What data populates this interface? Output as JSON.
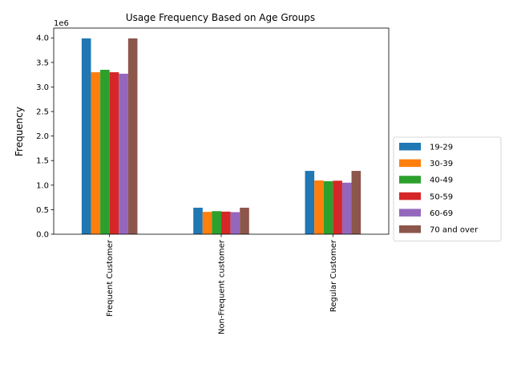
{
  "chart_data": {
    "type": "bar",
    "title": "Usage Frequency Based on Age Groups",
    "xlabel": "",
    "ylabel": "Frequency",
    "y_scale_note": "1e6",
    "ylim": [
      0,
      4200000
    ],
    "yticks": [
      0,
      500000,
      1000000,
      1500000,
      2000000,
      2500000,
      3000000,
      3500000,
      4000000
    ],
    "ytick_labels": [
      "0.0",
      "0.5",
      "1.0",
      "1.5",
      "2.0",
      "2.5",
      "3.0",
      "3.5",
      "4.0"
    ],
    "categories": [
      "Frequent Customer",
      "Non-Frequent customer",
      "Regular Customer"
    ],
    "legend_position": "center-right outside",
    "grid": false,
    "series": [
      {
        "name": "19-29",
        "color": "#1f77b4",
        "values": [
          3990000,
          540000,
          1290000
        ]
      },
      {
        "name": "30-39",
        "color": "#ff7f0e",
        "values": [
          3300000,
          455000,
          1095000
        ]
      },
      {
        "name": "40-49",
        "color": "#2ca02c",
        "values": [
          3350000,
          470000,
          1080000
        ]
      },
      {
        "name": "50-59",
        "color": "#d62728",
        "values": [
          3300000,
          460000,
          1090000
        ]
      },
      {
        "name": "60-69",
        "color": "#9467bd",
        "values": [
          3270000,
          450000,
          1050000
        ]
      },
      {
        "name": "70 and over",
        "color": "#8c564b",
        "values": [
          3990000,
          540000,
          1290000
        ]
      }
    ]
  }
}
